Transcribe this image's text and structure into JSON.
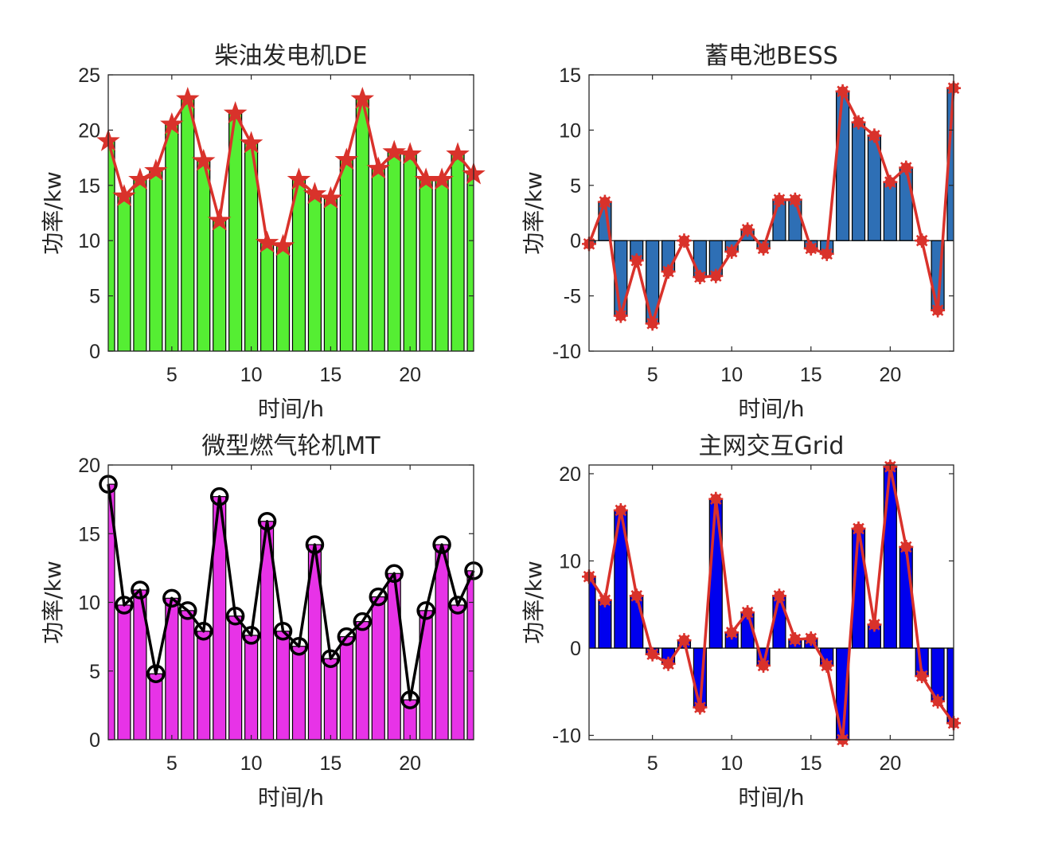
{
  "chart_data": [
    {
      "type": "bar",
      "title": "柴油发电机DE",
      "xlabel": "时间/h",
      "ylabel": "功率/kw",
      "x": [
        1,
        2,
        3,
        4,
        5,
        6,
        7,
        8,
        9,
        10,
        11,
        12,
        13,
        14,
        15,
        16,
        17,
        18,
        19,
        20,
        21,
        22,
        23,
        24
      ],
      "xlim": [
        1,
        24
      ],
      "ylim": [
        0,
        25
      ],
      "xticks": [
        5,
        10,
        15,
        20
      ],
      "yticks": [
        0,
        5,
        10,
        15,
        20,
        25
      ],
      "grid": false,
      "series": [
        {
          "kind": "bar",
          "color": "#55ee33",
          "values": [
            19,
            14,
            15.5,
            16.3,
            20.5,
            22.8,
            17.2,
            11.8,
            21.5,
            18.8,
            9.8,
            9.5,
            15.5,
            14.2,
            13.8,
            17.3,
            22.8,
            16.5,
            18,
            17.8,
            15.5,
            15.5,
            17.8,
            16
          ]
        },
        {
          "kind": "line",
          "marker": "star",
          "color": "#d9322b",
          "values": [
            19,
            14,
            15.5,
            16.3,
            20.5,
            22.8,
            17.2,
            11.8,
            21.5,
            18.8,
            9.8,
            9.5,
            15.5,
            14.2,
            13.8,
            17.3,
            22.8,
            16.5,
            18,
            17.8,
            15.5,
            15.5,
            17.8,
            16
          ]
        }
      ]
    },
    {
      "type": "bar",
      "title": "蓄电池BESS",
      "xlabel": "时间/h",
      "ylabel": "功率/kw",
      "x": [
        1,
        2,
        3,
        4,
        5,
        6,
        7,
        8,
        9,
        10,
        11,
        12,
        13,
        14,
        15,
        16,
        17,
        18,
        19,
        20,
        21,
        22,
        23,
        24
      ],
      "xlim": [
        1,
        24
      ],
      "ylim": [
        -10,
        15
      ],
      "xticks": [
        5,
        10,
        15,
        20
      ],
      "yticks": [
        -10,
        -5,
        0,
        5,
        10,
        15
      ],
      "grid": false,
      "series": [
        {
          "kind": "bar",
          "color": "#2e6fb5",
          "values": [
            -0.3,
            3.5,
            -6.8,
            -1.8,
            -7.5,
            -2.8,
            0,
            -3.3,
            -3.2,
            -1,
            1,
            -0.7,
            3.7,
            3.7,
            -0.7,
            -1.2,
            13.5,
            10.7,
            9.5,
            5.3,
            6.6,
            0,
            -6.3,
            13.8
          ]
        },
        {
          "kind": "line",
          "marker": "asterisk",
          "color": "#d9322b",
          "values": [
            -0.3,
            3.5,
            -6.8,
            -1.8,
            -7.5,
            -2.8,
            0,
            -3.3,
            -3.2,
            -1,
            1,
            -0.7,
            3.7,
            3.7,
            -0.7,
            -1.2,
            13.5,
            10.7,
            9.5,
            5.3,
            6.6,
            0,
            -6.3,
            13.8
          ]
        }
      ]
    },
    {
      "type": "bar",
      "title": "微型燃气轮机MT",
      "xlabel": "时间/h",
      "ylabel": "功率/kw",
      "x": [
        1,
        2,
        3,
        4,
        5,
        6,
        7,
        8,
        9,
        10,
        11,
        12,
        13,
        14,
        15,
        16,
        17,
        18,
        19,
        20,
        21,
        22,
        23,
        24
      ],
      "xlim": [
        1,
        24
      ],
      "ylim": [
        0,
        20
      ],
      "xticks": [
        5,
        10,
        15,
        20
      ],
      "yticks": [
        0,
        5,
        10,
        15,
        20
      ],
      "grid": false,
      "series": [
        {
          "kind": "bar",
          "color": "#e733e7",
          "values": [
            18.6,
            9.8,
            10.9,
            4.8,
            10.3,
            9.4,
            7.9,
            17.7,
            9.0,
            7.6,
            15.9,
            7.9,
            6.8,
            14.2,
            5.9,
            7.5,
            8.6,
            10.4,
            12.1,
            2.9,
            9.4,
            14.2,
            9.8,
            12.3
          ]
        },
        {
          "kind": "line",
          "marker": "circle",
          "color": "#000000",
          "values": [
            18.6,
            9.8,
            10.9,
            4.8,
            10.3,
            9.4,
            7.9,
            17.7,
            9.0,
            7.6,
            15.9,
            7.9,
            6.8,
            14.2,
            5.9,
            7.5,
            8.6,
            10.4,
            12.1,
            2.9,
            9.4,
            14.2,
            9.8,
            12.3
          ]
        }
      ]
    },
    {
      "type": "bar",
      "title": "主网交互Grid",
      "xlabel": "时间/h",
      "ylabel": "功率/kw",
      "x": [
        1,
        2,
        3,
        4,
        5,
        6,
        7,
        8,
        9,
        10,
        11,
        12,
        13,
        14,
        15,
        16,
        17,
        18,
        19,
        20,
        21,
        22,
        23,
        24
      ],
      "xlim": [
        1,
        24
      ],
      "ylim": [
        -10.5,
        21
      ],
      "xticks": [
        5,
        10,
        15,
        20
      ],
      "yticks": [
        -10,
        0,
        10,
        20
      ],
      "grid": false,
      "series": [
        {
          "kind": "bar",
          "color": "#0000ee",
          "values": [
            8.2,
            5.5,
            15.8,
            6.0,
            -0.7,
            -1.8,
            0.9,
            -6.8,
            17.1,
            1.8,
            4.1,
            -2.0,
            6.0,
            1.0,
            1.1,
            -2.0,
            -10.5,
            13.7,
            2.7,
            20.8,
            11.6,
            -3.2,
            -6.1,
            -8.6
          ]
        },
        {
          "kind": "line",
          "marker": "asterisk",
          "color": "#d9322b",
          "values": [
            8.2,
            5.5,
            15.8,
            6.0,
            -0.7,
            -1.8,
            0.9,
            -6.8,
            17.1,
            1.8,
            4.1,
            -2.0,
            6.0,
            1.0,
            1.1,
            -2.0,
            -10.5,
            13.7,
            2.7,
            20.8,
            11.6,
            -3.2,
            -6.1,
            -8.6
          ]
        }
      ]
    }
  ]
}
